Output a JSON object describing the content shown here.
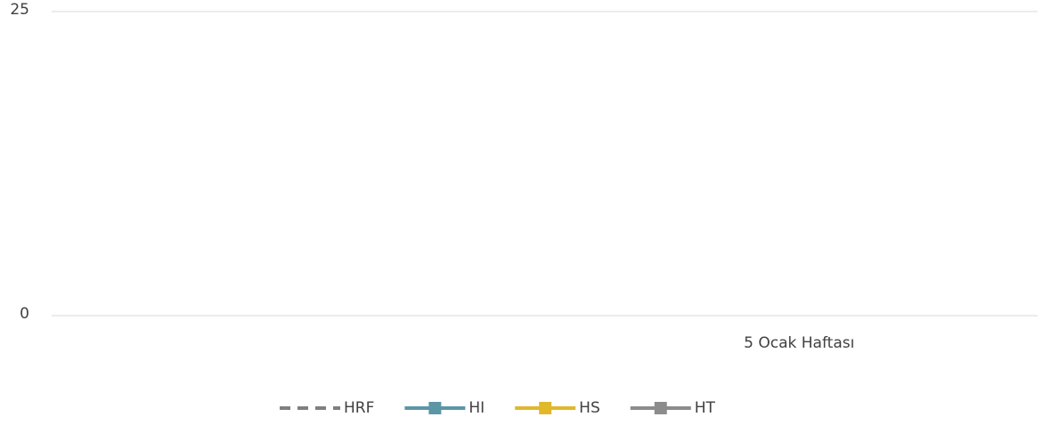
{
  "chart_data": {
    "type": "line",
    "categories": [
      null,
      "5 Ocak Haftası"
    ],
    "series": [
      {
        "name": "HRF",
        "color": "#7f7f7f",
        "style": "dashed",
        "values": [
          null,
          null
        ]
      },
      {
        "name": "HI",
        "color": "#5b96a5",
        "marker": "square",
        "values": [
          null,
          null
        ]
      },
      {
        "name": "HS",
        "color": "#e0b82a",
        "marker": "square",
        "values": [
          null,
          null
        ]
      },
      {
        "name": "HT",
        "color": "#8c8c8c",
        "marker": "square",
        "values": [
          null,
          null
        ]
      }
    ],
    "ylim": [
      0,
      25
    ],
    "yticks": [
      0,
      25
    ],
    "grid": true,
    "legend": "bottom"
  }
}
